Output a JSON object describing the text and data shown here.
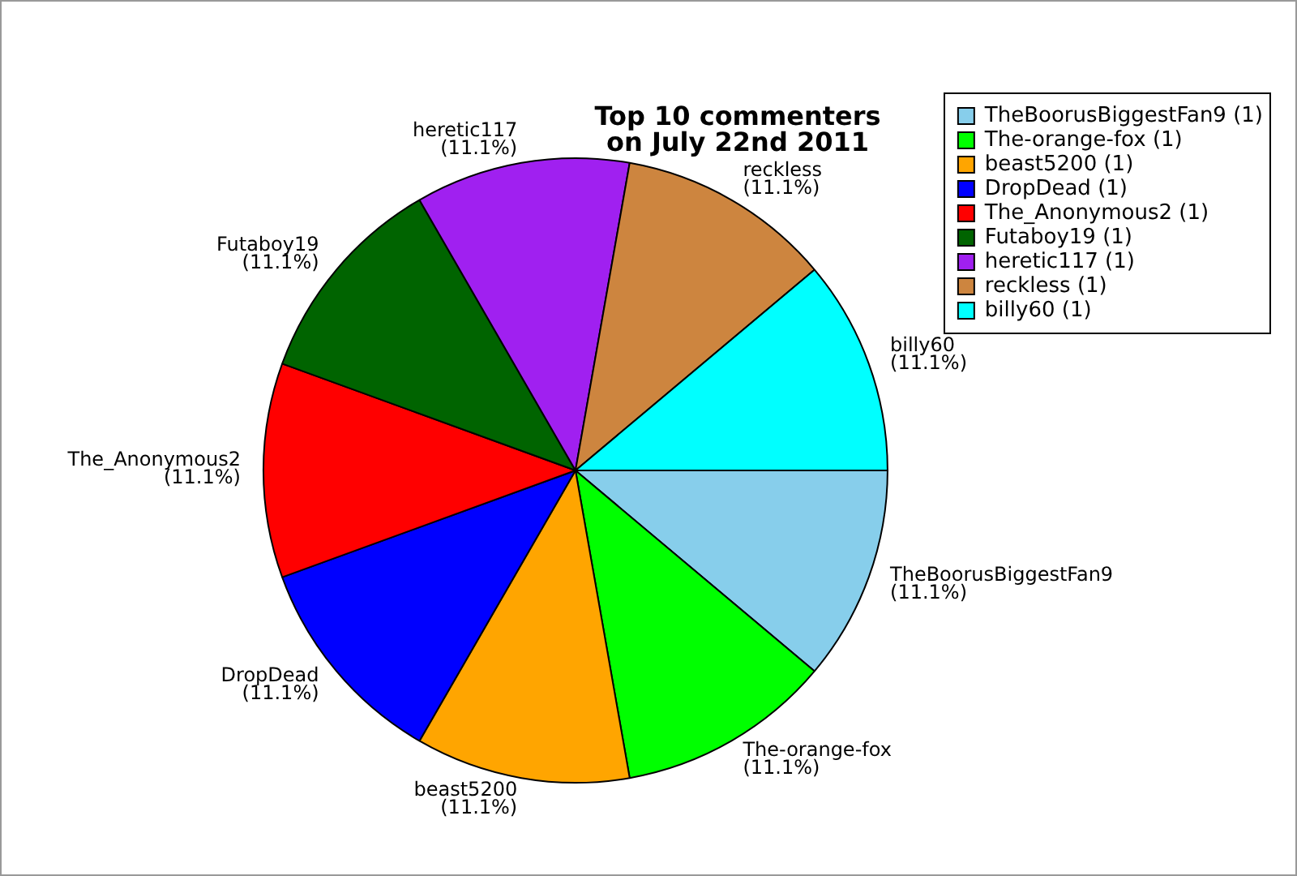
{
  "chart_data": {
    "type": "pie",
    "title": "Top 10 commenters\non July 22nd 2011",
    "categories": [
      "TheBoorusBiggestFan9",
      "The-orange-fox",
      "beast5200",
      "DropDead",
      "The_Anonymous2",
      "Futaboy19",
      "heretic117",
      "reckless",
      "billy60"
    ],
    "values": [
      11.1,
      11.1,
      11.1,
      11.1,
      11.1,
      11.1,
      11.1,
      11.1,
      11.1
    ],
    "value_labels": [
      "(11.1%)",
      "(11.1%)",
      "(11.1%)",
      "(11.1%)",
      "(11.1%)",
      "(11.1%)",
      "(11.1%)",
      "(11.1%)",
      "(11.1%)"
    ],
    "annotations": [
      "(1)",
      "(1)",
      "(1)",
      "(1)",
      "(1)",
      "(1)",
      "(1)",
      "(1)",
      "(1)"
    ],
    "colors": [
      "#87ceeb",
      "#00ff00",
      "#ffa500",
      "#0000ff",
      "#ff0000",
      "#006400",
      "#a020f0",
      "#cd853f",
      "#00ffff"
    ],
    "legend": "top right"
  }
}
